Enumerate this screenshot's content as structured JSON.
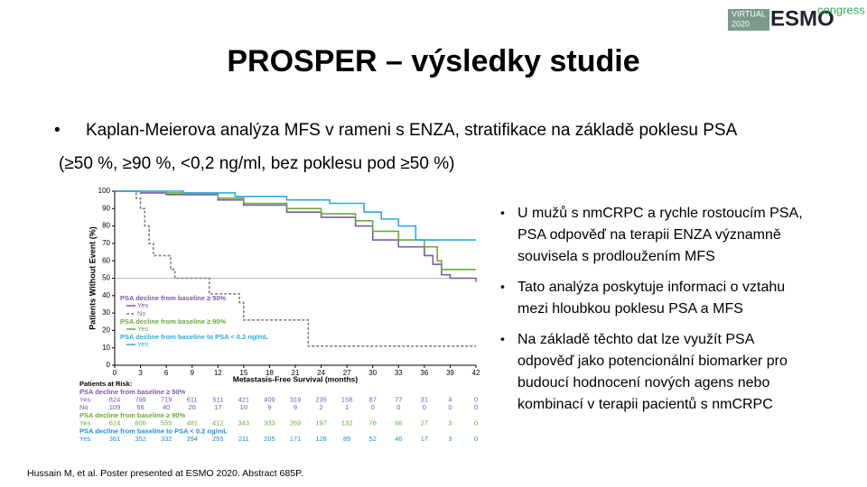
{
  "logo": {
    "line1": "VIRTUAL",
    "line2": "2020",
    "brand": "ESMO",
    "suffix": "congress"
  },
  "title": "PROSPER – výsledky studie",
  "intro": {
    "lines": [
      "Kaplan-Meierova analýza MFS v rameni s ENZA, stratifikace na základě poklesu PSA",
      "(≥50 %, ≥90 %, <0,2 ng/ml, bez poklesu pod ≥50 %)"
    ]
  },
  "bullets": [
    {
      "lines": [
        "U mužů s nmCRPC a rychle rostoucím PSA,",
        "PSA odpověď na terapii ENZA významně",
        "souvisela s prodloužením MFS"
      ]
    },
    {
      "lines": [
        "Tato analýza poskytuje informaci o vztahu",
        "mezi hloubkou poklesu PSA a MFS"
      ]
    },
    {
      "lines": [
        "Na základě těchto dat lze využít PSA",
        "odpověď jako potencionální biomarker pro",
        "budoucí hodnocení nových agens nebo",
        "kombinací v terapii pacientů s nmCRPC"
      ]
    }
  ],
  "footnote": "Hussain M, et al. Poster presented at ESMO 2020. Abstract 685P.",
  "chart_data": {
    "type": "step-line",
    "x_label": "Metastasis-Free Survival (months)",
    "y_label": "Patients Without Event (%)",
    "xlim": [
      0,
      42
    ],
    "xticks": [
      0,
      3,
      6,
      9,
      12,
      15,
      18,
      21,
      24,
      27,
      30,
      33,
      36,
      39,
      42
    ],
    "ylim": [
      0,
      100
    ],
    "yticks": [
      0,
      10,
      20,
      30,
      40,
      50,
      60,
      70,
      80,
      90,
      100
    ],
    "reference_y": 50,
    "series": [
      {
        "group": "PSA decline from baseline ≥ 50%",
        "name": "Yes",
        "color": "#7b58a8",
        "x": [
          0,
          3,
          6,
          12,
          15,
          20,
          24,
          28,
          30,
          33,
          36,
          37,
          38,
          39,
          42
        ],
        "values": [
          100,
          99,
          98,
          95,
          92,
          88,
          85,
          80,
          72,
          68,
          63,
          58,
          52,
          50,
          48
        ]
      },
      {
        "name": "No",
        "color": "#7f7f7f",
        "x": [
          0,
          2.5,
          3,
          3.5,
          4,
          4.5,
          6.5,
          7,
          11,
          14.5,
          15,
          22.5,
          42
        ],
        "values": [
          100,
          96,
          90,
          80,
          70,
          63,
          55,
          50,
          41,
          36,
          26,
          11,
          11
        ]
      },
      {
        "group": "PSA decline from baseline ≥ 90%",
        "name": "Yes",
        "color": "#6aaa3a",
        "x": [
          0,
          6,
          12,
          15,
          20,
          24,
          28,
          30,
          33,
          36,
          37.5,
          38,
          42
        ],
        "values": [
          100,
          99,
          96,
          93,
          90,
          87,
          83,
          77,
          72,
          68,
          60,
          55,
          55
        ]
      },
      {
        "group": "PSA decline from baseline to PSA < 0.2 ng/mL",
        "name": "Yes",
        "color": "#29abe2",
        "x": [
          0,
          8,
          14,
          20,
          25,
          29,
          31,
          33,
          35,
          42
        ],
        "values": [
          100,
          99,
          97,
          95,
          93,
          88,
          84,
          80,
          72,
          72
        ]
      }
    ],
    "risk_table": {
      "title": "Patients at Risk:",
      "groups": [
        {
          "title": "PSA decline from baseline ≥ 50%",
          "color": "#7b58a8",
          "rows": [
            {
              "label": "Yes",
              "values": [
                824,
                799,
                719,
                611,
                511,
                421,
                409,
                319,
                235,
                158,
                87,
                77,
                31,
                4,
                0
              ]
            },
            {
              "label": "No",
              "values": [
                109,
                66,
                40,
                26,
                17,
                10,
                9,
                9,
                2,
                1,
                0,
                0,
                0,
                0,
                0
              ]
            }
          ]
        },
        {
          "title": "PSA decline from baseline ≥ 90%",
          "color": "#6aaa3a",
          "rows": [
            {
              "label": "Yes",
              "values": [
                624,
                606,
                555,
                481,
                412,
                343,
                333,
                269,
                197,
                132,
                76,
                66,
                27,
                3,
                0
              ]
            }
          ]
        },
        {
          "title": "PSA decline from baseline to PSA < 0.2 ng/mL",
          "color": "#1e90d0",
          "rows": [
            {
              "label": "Yes",
              "values": [
                361,
                352,
                332,
                294,
                255,
                211,
                205,
                171,
                128,
                89,
                52,
                46,
                17,
                3,
                0
              ]
            }
          ]
        }
      ]
    }
  }
}
